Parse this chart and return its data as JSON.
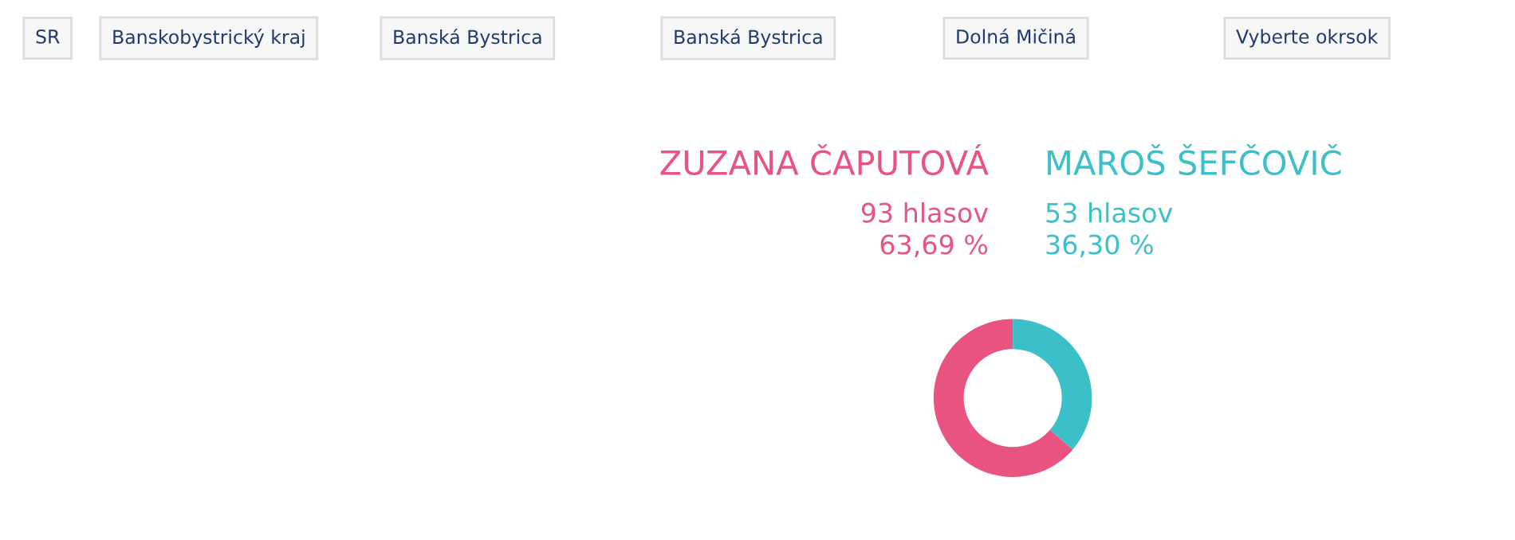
{
  "chart_data": {
    "type": "donut",
    "categories": [
      "ZUZANA ČAPUTOVÁ",
      "MAROŠ ŠEFČOVIČ"
    ],
    "values": [
      93,
      53
    ],
    "value_labels": [
      "93 hlasov\n63,69 %",
      "53 hlasov\n36,30 %"
    ],
    "colors": [
      "#e8537f",
      "#3bbfc8"
    ],
    "annotations": [
      "SR",
      "Banskobystrický kraj",
      "Banská Bystrica",
      "Banská Bystrica",
      "Dolná Mičiná",
      "Vyberte okrsok"
    ]
  }
}
